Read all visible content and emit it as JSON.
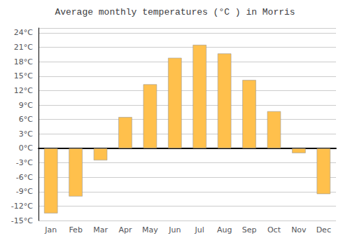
{
  "chart_data": {
    "type": "bar",
    "title": "Average monthly temperatures (°C ) in Morris",
    "categories": [
      "Jan",
      "Feb",
      "Mar",
      "Apr",
      "May",
      "Jun",
      "Jul",
      "Aug",
      "Sep",
      "Oct",
      "Nov",
      "Dec"
    ],
    "values": [
      -13.5,
      -10.0,
      -2.5,
      6.5,
      13.3,
      18.8,
      21.5,
      19.7,
      14.2,
      7.7,
      -1.0,
      -9.5
    ],
    "color": "#FFC04C",
    "ylim": [
      -15,
      25
    ],
    "yticks": [
      {
        "value": -15,
        "label": "-15°C"
      },
      {
        "value": -12,
        "label": "-12°C"
      },
      {
        "value": -9,
        "label": "-9°C"
      },
      {
        "value": -6,
        "label": "-6°C"
      },
      {
        "value": -3,
        "label": "-3°C"
      },
      {
        "value": 0,
        "label": "0°C"
      },
      {
        "value": 3,
        "label": "3°C"
      },
      {
        "value": 6,
        "label": "6°C"
      },
      {
        "value": 9,
        "label": "9°C"
      },
      {
        "value": 12,
        "label": "12°C"
      },
      {
        "value": 15,
        "label": "15°C"
      },
      {
        "value": 18,
        "label": "18°C"
      },
      {
        "value": 21,
        "label": "21°C"
      },
      {
        "value": 24,
        "label": "24°C"
      }
    ],
    "grid": true
  }
}
